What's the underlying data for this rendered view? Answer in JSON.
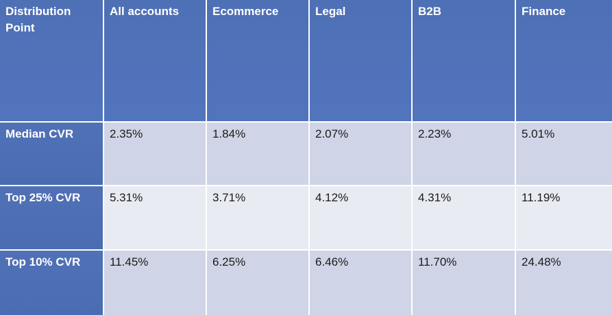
{
  "table": {
    "header": [
      "Distribution Point",
      "All accounts",
      "Ecommerce",
      "Legal",
      "B2B",
      "Finance"
    ],
    "rows": [
      [
        "Median CVR",
        "2.35%",
        "1.84%",
        "2.07%",
        "2.23%",
        "5.01%"
      ],
      [
        "Top 25% CVR",
        "5.31%",
        "3.71%",
        "4.12%",
        "4.31%",
        "11.19%"
      ],
      [
        "Top 10% CVR",
        "11.45%",
        "6.25%",
        "6.46%",
        "11.70%",
        "24.48%"
      ]
    ]
  }
}
